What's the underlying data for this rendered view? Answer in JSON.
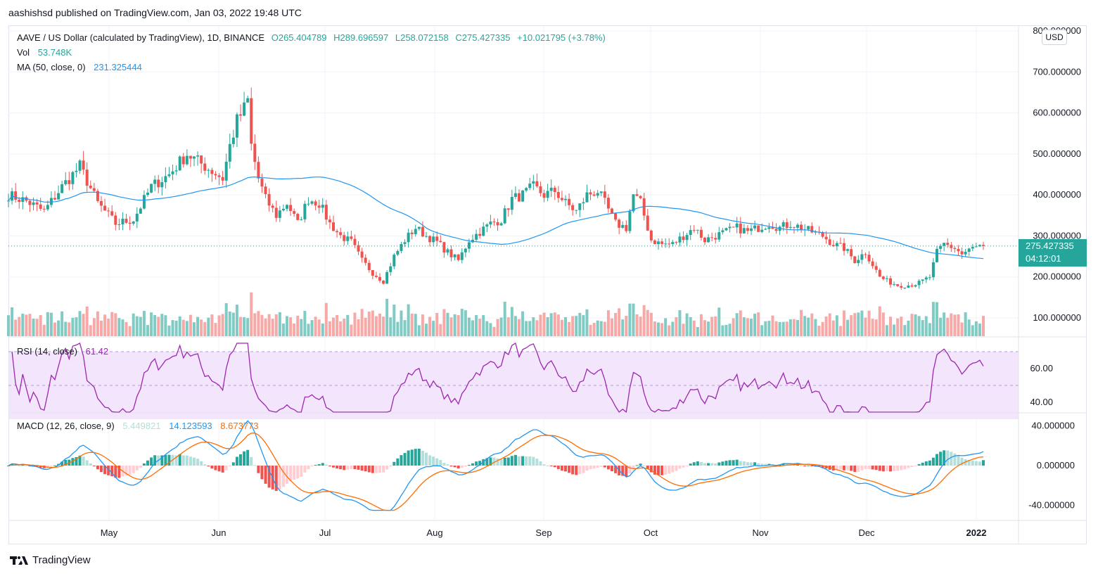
{
  "publish_line": "aashishsd published on TradingView.com, Jan 03, 2022 19:48 UTC",
  "brand": "TradingView",
  "currency_button": "USD",
  "legend": {
    "symbol": "AAVE / US Dollar (calculated by TradingView), 1D, BINANCE",
    "open": "O265.404789",
    "high": "H289.696597",
    "low": "L258.072158",
    "close": "C275.427335",
    "change": "+10.021795 (+3.78%)",
    "vol_label": "Vol",
    "vol_value": "53.748K",
    "ma_label": "MA (50, close, 0)",
    "ma_value": "231.325444",
    "rsi_label": "RSI (14, close)",
    "rsi_value": "61.42",
    "macd_label": "MACD (12, 26, close, 9)",
    "macd_hist": "5.449821",
    "macd_line": "14.123593",
    "macd_signal": "8.673773"
  },
  "price_tag": {
    "price": "275.427335",
    "countdown": "04:12:01"
  },
  "colors": {
    "up": "#26a69a",
    "down": "#ef5350",
    "ma": "#2196f3",
    "rsi": "#9c27b0",
    "signal": "#ff6d00",
    "rsi_band": "#f3e5fc"
  },
  "chart_data": [
    {
      "type": "candlestick",
      "title": "AAVE / US Dollar (calculated by TradingView), 1D, BINANCE",
      "ylim": [
        50,
        800
      ],
      "y_ticks": [
        "800.000000",
        "700.000000",
        "600.000000",
        "500.000000",
        "400.000000",
        "300.000000",
        "200.000000",
        "100.000000"
      ],
      "x_ticks": [
        "May",
        "Jun",
        "Jul",
        "Aug",
        "Sep",
        "Oct",
        "Nov",
        "Dec",
        "2022"
      ],
      "last_price": 275.427335,
      "series": [
        {
          "name": "Price",
          "keyframes": [
            [
              0,
              400
            ],
            [
              5,
              385
            ],
            [
              10,
              360
            ],
            [
              15,
              420
            ],
            [
              20,
              470
            ],
            [
              25,
              380
            ],
            [
              30,
              330
            ],
            [
              35,
              340
            ],
            [
              40,
              420
            ],
            [
              45,
              450
            ],
            [
              50,
              500
            ],
            [
              55,
              470
            ],
            [
              60,
              440
            ],
            [
              62,
              520
            ],
            [
              64,
              580
            ],
            [
              66,
              610
            ],
            [
              67,
              630
            ],
            [
              68,
              520
            ],
            [
              70,
              440
            ],
            [
              72,
              390
            ],
            [
              75,
              350
            ],
            [
              78,
              380
            ],
            [
              81,
              330
            ],
            [
              84,
              390
            ],
            [
              87,
              380
            ],
            [
              90,
              330
            ],
            [
              93,
              300
            ],
            [
              96,
              285
            ],
            [
              99,
              240
            ],
            [
              102,
              210
            ],
            [
              105,
              190
            ],
            [
              108,
              250
            ],
            [
              111,
              290
            ],
            [
              114,
              320
            ],
            [
              117,
              300
            ],
            [
              120,
              285
            ],
            [
              123,
              260
            ],
            [
              126,
              240
            ],
            [
              129,
              290
            ],
            [
              132,
              310
            ],
            [
              135,
              330
            ],
            [
              138,
              340
            ],
            [
              141,
              390
            ],
            [
              144,
              400
            ],
            [
              147,
              420
            ],
            [
              150,
              400
            ],
            [
              153,
              410
            ],
            [
              156,
              380
            ],
            [
              159,
              360
            ],
            [
              162,
              400
            ],
            [
              165,
              410
            ],
            [
              167,
              380
            ],
            [
              170,
              330
            ],
            [
              173,
              320
            ],
            [
              175,
              400
            ],
            [
              177,
              380
            ],
            [
              180,
              290
            ],
            [
              183,
              280
            ],
            [
              186,
              280
            ],
            [
              189,
              300
            ],
            [
              192,
              320
            ],
            [
              195,
              290
            ],
            [
              198,
              300
            ],
            [
              201,
              310
            ],
            [
              204,
              320
            ],
            [
              207,
              310
            ],
            [
              210,
              320
            ],
            [
              213,
              330
            ],
            [
              216,
              320
            ],
            [
              219,
              330
            ],
            [
              222,
              320
            ],
            [
              225,
              310
            ],
            [
              228,
              300
            ],
            [
              231,
              280
            ],
            [
              234,
              270
            ],
            [
              237,
              240
            ],
            [
              240,
              260
            ],
            [
              242,
              230
            ],
            [
              244,
              200
            ],
            [
              246,
              190
            ],
            [
              249,
              180
            ],
            [
              252,
              180
            ],
            [
              255,
              185
            ],
            [
              258,
              200
            ],
            [
              260,
              260
            ],
            [
              262,
              280
            ],
            [
              265,
              270
            ],
            [
              267,
              255
            ],
            [
              270,
              270
            ],
            [
              273,
              275.43
            ]
          ]
        },
        {
          "name": "MA (50, close, 0)",
          "value": 231.325444
        }
      ]
    },
    {
      "type": "bar",
      "title": "Vol",
      "series": [
        {
          "name": "Vol",
          "last": "53.748K"
        }
      ]
    },
    {
      "type": "line",
      "title": "RSI (14, close)",
      "y_ticks": [
        "60.00",
        "40.00"
      ],
      "band": [
        30,
        70
      ],
      "series": [
        {
          "name": "RSI",
          "last": 61.42
        }
      ]
    },
    {
      "type": "line",
      "title": "MACD (12, 26, close, 9)",
      "y_ticks": [
        "40.000000",
        "0.000000",
        "-40.000000"
      ],
      "series": [
        {
          "name": "Histogram",
          "last": 5.449821
        },
        {
          "name": "MACD",
          "last": 14.123593
        },
        {
          "name": "Signal",
          "last": 8.673773
        }
      ]
    }
  ]
}
